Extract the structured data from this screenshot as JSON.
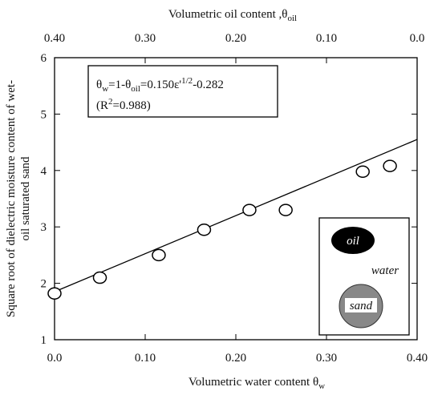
{
  "chart_data": {
    "type": "scatter",
    "x": [
      0.0,
      0.05,
      0.115,
      0.165,
      0.215,
      0.255,
      0.34,
      0.37
    ],
    "values": [
      1.82,
      2.1,
      2.5,
      2.95,
      3.3,
      3.3,
      3.98,
      4.08
    ],
    "fit_line": {
      "x": [
        0.0,
        0.4
      ],
      "y": [
        1.85,
        4.55
      ]
    },
    "xlim": [
      0.0,
      0.4
    ],
    "xticks": [
      {
        "value": 0.0,
        "label": "0.0"
      },
      {
        "value": 0.1,
        "label": "0.10"
      },
      {
        "value": 0.2,
        "label": "0.20"
      },
      {
        "value": 0.3,
        "label": "0.30"
      },
      {
        "value": 0.4,
        "label": "0.40"
      }
    ],
    "x2lim": [
      0.4,
      0.0
    ],
    "x2ticks": [
      {
        "value": 0.4,
        "label": "0.40"
      },
      {
        "value": 0.3,
        "label": "0.30"
      },
      {
        "value": 0.2,
        "label": "0.20"
      },
      {
        "value": 0.1,
        "label": "0.10"
      },
      {
        "value": 0.0,
        "label": "0.0"
      }
    ],
    "ylim": [
      1,
      6
    ],
    "yticks": [
      1,
      2,
      3,
      4,
      5,
      6
    ],
    "x_label": [
      "Volumetric water content ",
      "θ",
      "w"
    ],
    "x2_label": [
      "Volumetric oil content ,",
      "θ",
      "oil"
    ],
    "y_label": [
      "Square root of dielectric moisture content of wet-",
      "oil saturated sand"
    ],
    "equation": [
      "θ",
      "w",
      "=1-θ",
      "oil",
      "=0.150ε'",
      "1/2",
      "-0.282"
    ],
    "r2": [
      "(R",
      "2",
      "=0.988)"
    ],
    "inset": [
      "oil",
      "water",
      "sand"
    ]
  }
}
